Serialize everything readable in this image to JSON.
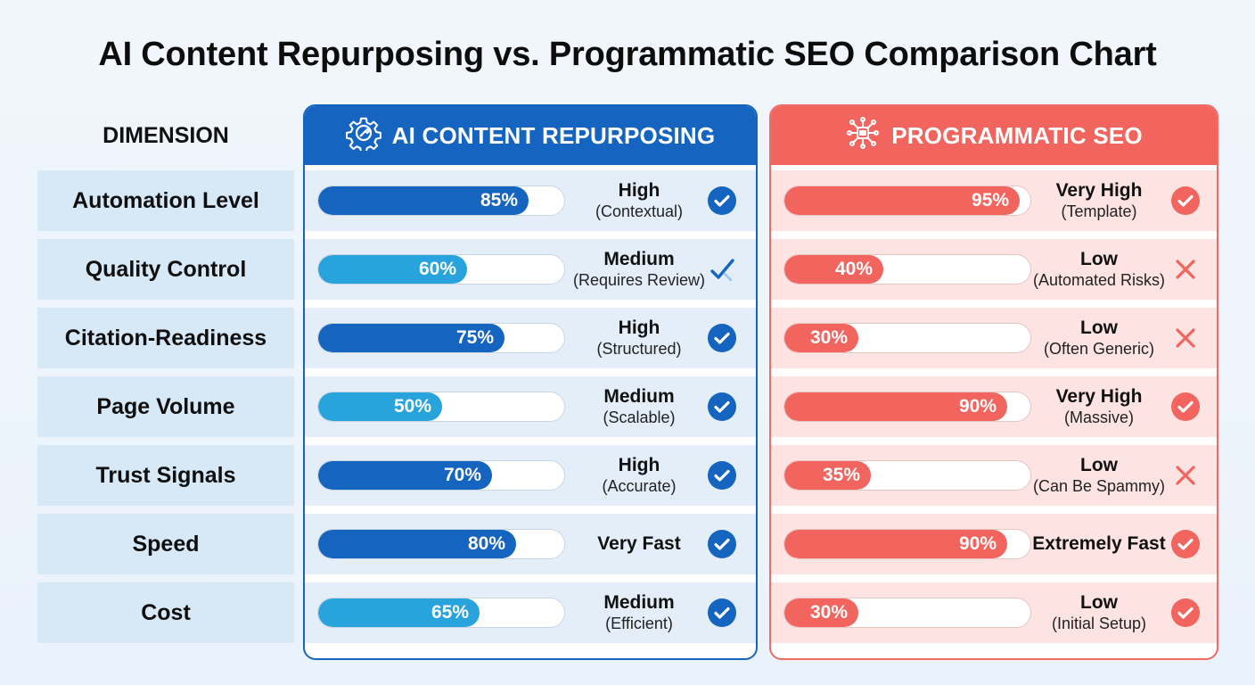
{
  "title": "AI Content Repurposing vs. Programmatic SEO Comparison Chart",
  "dimension_header": "DIMENSION",
  "colors": {
    "ai_dark": "#1565c0",
    "ai_light": "#29a3dc",
    "ps_fill": "#f2645e",
    "check_blue": "#1565c0",
    "check_red": "#f2645e",
    "cross_red": "#f2645e"
  },
  "columns": {
    "ai": {
      "label": "AI CONTENT REPURPOSING",
      "icon": "gear-cog-icon"
    },
    "ps": {
      "label": "PROGRAMMATIC SEO",
      "icon": "network-chip-icon"
    }
  },
  "chart_data": {
    "type": "bar",
    "categories": [
      "Automation Level",
      "Quality Control",
      "Citation-Readiness",
      "Page Volume",
      "Trust Signals",
      "Speed",
      "Cost"
    ],
    "ylim": [
      0,
      100
    ],
    "series": [
      {
        "name": "AI CONTENT REPURPOSING",
        "values": [
          85,
          60,
          75,
          50,
          70,
          80,
          65
        ],
        "labels": [
          "85%",
          "60%",
          "75%",
          "50%",
          "70%",
          "80%",
          "65%"
        ],
        "shade": [
          "dark",
          "light",
          "dark",
          "light",
          "dark",
          "dark",
          "light"
        ],
        "ratings": [
          "High",
          "Medium",
          "High",
          "Medium",
          "High",
          "Very Fast",
          "Medium"
        ],
        "notes": [
          "(Contextual)",
          "(Requires Review)",
          "(Structured)",
          "(Scalable)",
          "(Accurate)",
          "",
          "(Efficient)"
        ],
        "status": [
          "check",
          "check-outline",
          "check",
          "check",
          "check",
          "check",
          "check"
        ]
      },
      {
        "name": "PROGRAMMATIC SEO",
        "values": [
          95,
          40,
          30,
          90,
          35,
          90,
          30
        ],
        "labels": [
          "95%",
          "40%",
          "30%",
          "90%",
          "35%",
          "90%",
          "30%"
        ],
        "ratings": [
          "Very High",
          "Low",
          "Low",
          "Very High",
          "Low",
          "Extremely Fast",
          "Low"
        ],
        "notes": [
          "(Template)",
          "(Automated Risks)",
          "(Often Generic)",
          "(Massive)",
          "(Can Be Spammy)",
          "",
          "(Initial Setup)"
        ],
        "status": [
          "check",
          "cross",
          "cross",
          "check",
          "cross",
          "check",
          "check"
        ]
      }
    ]
  }
}
